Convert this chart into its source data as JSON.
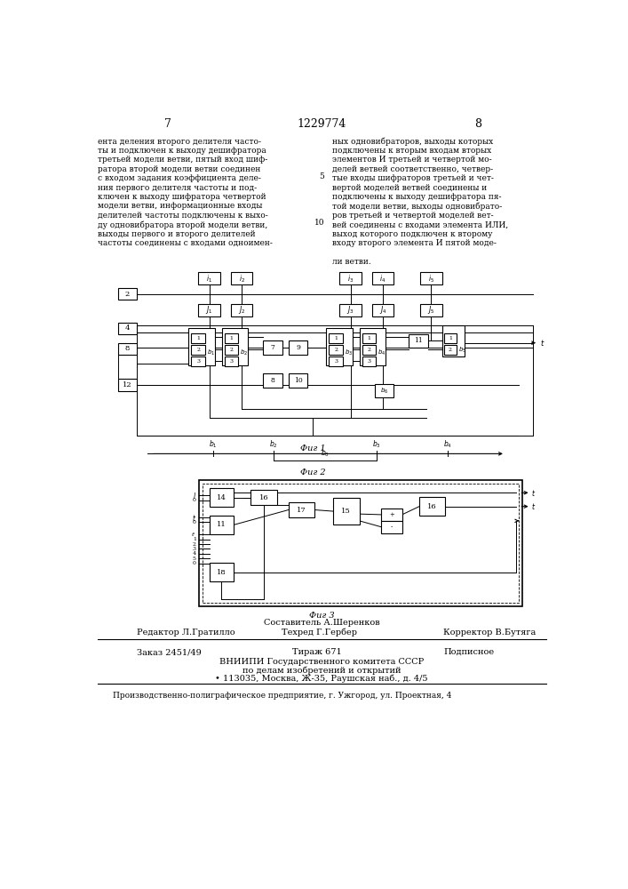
{
  "page_number_left": "7",
  "patent_number": "1229774",
  "page_number_right": "8",
  "left_column_text": [
    "ента деления второго делителя часто-",
    "ты и подключен к выходу дешифратора",
    "третьей модели ветви, пятый вход шиф-",
    "ратора второй модели ветви соединен",
    "с входом задания коэффициента деле-",
    "ния первого делителя частоты и под-",
    "ключен к выходу шифратора четвертой",
    "модели ветви, информационные входы",
    "делителей частоты подключены к выхо-",
    "ду одновибратора второй модели ветви,",
    "выходы первого и второго делителей",
    "частоты соединены с входами одноимен-"
  ],
  "right_column_text": [
    "ных одновибраторов, выходы которых",
    "подключены к вторым входам вторых",
    "элементов И третьей и четвертой мо-",
    "делей ветвей соответственно, четвер-",
    "тые входы шифраторов третьей и чет-",
    "вертой моделей ветвей соединены и",
    "подключены к выходу дешифратора пя-",
    "той модели ветви, выходы одновибрато-",
    "ров третьей и четвертой моделей вет-",
    "вей соединены с входами элемента ИЛИ,",
    "выход которого подключен к второму",
    "входу второго элемента И пятой моде-",
    "",
    "ли ветви."
  ],
  "line_num_5": "5",
  "line_num_10": "10",
  "fig1_label": "Фиг 1",
  "fig2_label": "Фиг 2",
  "fig3_label": "Фиг 3",
  "footer_composer": "Составитель А.Шеренков",
  "footer_editor": "Редактор Л.Гратилло",
  "footer_tech": "Техред Г.Гербер",
  "footer_corrector": "Корректор В.Бутяга",
  "footer_order": "Заказ 2451/49",
  "footer_print": "Тираж 671",
  "footer_sign": "Подписное",
  "footer_org": "ВНИИПИ Государственного комитета СССР",
  "footer_org2": "по делам изобретений и открытий",
  "footer_address": "• 113035, Москва, Ж-35, Раушская наб., д. 4/5",
  "footer_enterprise": "Производственно-полиграфическое предприятие, г. Ужгород, ул. Проектная, 4",
  "bg_color": "#ffffff",
  "text_color": "#000000"
}
